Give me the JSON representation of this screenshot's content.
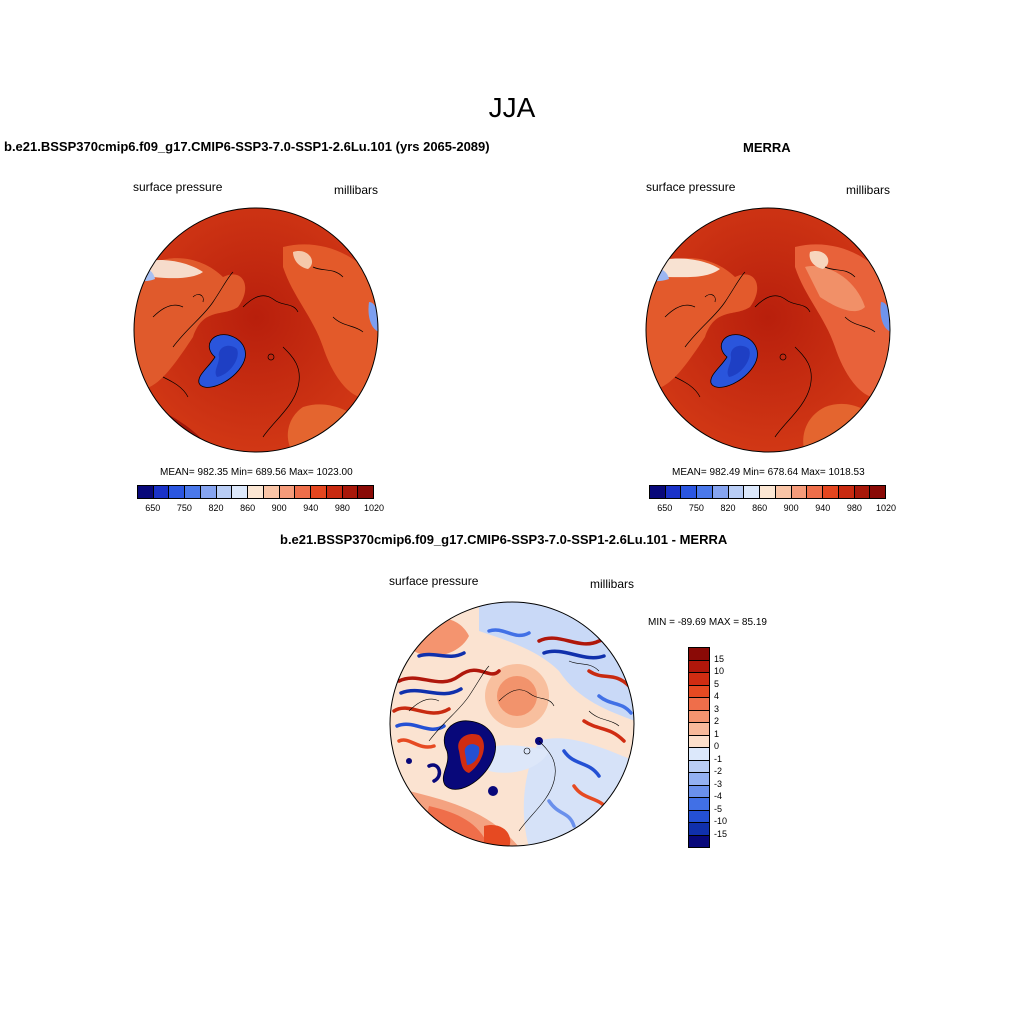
{
  "figure": {
    "season": "JJA"
  },
  "panels": {
    "model": {
      "title": "b.e21.BSSP370cmip6.f09_g17.CMIP6-SSP3-7.0-SSP1-2.6Lu.101 (yrs 2065-2089)",
      "variable": "surface pressure",
      "units": "millibars",
      "stats": "MEAN= 982.35  Min= 689.56  Max= 1023.00",
      "mean": 982.35,
      "min": 689.56,
      "max": 1023.0
    },
    "obs": {
      "title": "MERRA",
      "variable": "surface pressure",
      "units": "millibars",
      "stats": "MEAN= 982.49  Min= 678.64  Max= 1018.53",
      "mean": 982.49,
      "min": 678.64,
      "max": 1018.53
    },
    "diff": {
      "title": "b.e21.BSSP370cmip6.f09_g17.CMIP6-SSP3-7.0-SSP1-2.6Lu.101 - MERRA",
      "variable": "surface pressure",
      "units": "millibars",
      "stats": "MIN = -89.69 MAX =  85.19",
      "min": -89.69,
      "max": 85.19
    }
  },
  "colorbar_abs": {
    "tick_labels": [
      "650",
      "750",
      "820",
      "860",
      "900",
      "940",
      "980",
      "1020"
    ],
    "colors": [
      "#08087a",
      "#1a32c8",
      "#2b56e0",
      "#4a78ea",
      "#86a4f0",
      "#b9cdf5",
      "#dce8fb",
      "#fbe6d3",
      "#f9c4a6",
      "#f59b7a",
      "#ee6e4a",
      "#e4461f",
      "#c82a10",
      "#a8180a",
      "#8a0a06"
    ]
  },
  "colorbar_diff": {
    "tick_labels": [
      "15",
      "10",
      "5",
      "4",
      "3",
      "2",
      "1",
      "0",
      "-1",
      "-2",
      "-3",
      "-4",
      "-5",
      "-10",
      "-15"
    ],
    "colors": [
      "#8a0a06",
      "#b0170b",
      "#d02c12",
      "#e64a22",
      "#ef6e4a",
      "#f4946f",
      "#f8b99a",
      "#fcdfcb",
      "#dce8fb",
      "#b9cdf5",
      "#93b0f2",
      "#6a90ec",
      "#4170e6",
      "#2450d4",
      "#1030ac",
      "#08087a"
    ]
  }
}
